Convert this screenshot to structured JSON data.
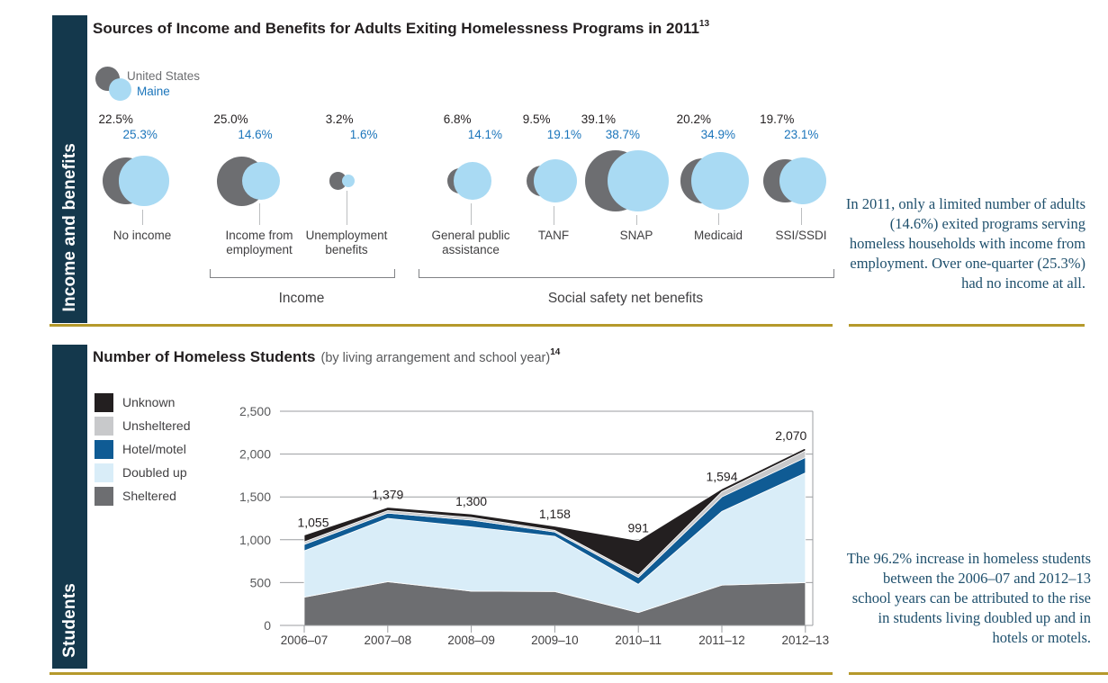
{
  "colors": {
    "sidebar_navy": "#14384C",
    "gold_rule": "#B5992B",
    "us_gray": "#6D6E71",
    "maine_blue": "#A9DAF3",
    "maine_text_blue": "#1B75BB",
    "heading_dark": "#231F20",
    "label_gray": "#414042",
    "axis_gray": "#58595B",
    "note_serif_blue": "#1E4F6C"
  },
  "section1": {
    "sidebar_label": "Income and benefits",
    "note": "In 2011, only a limited number of adults (14.6%) exited programs serving homeless households with income from employment. Over one-quarter (25.3%) had no income at all."
  },
  "section2": {
    "sidebar_label": "Students",
    "note": "The 96.2% increase in homeless students between the 2006–07 and 2012–13 school years can be attributed to the rise in students living doubled up and in hotels or motels."
  },
  "chart_data": [
    {
      "type": "bubble",
      "title": "Sources of Income and Benefits for Adults Exiting Homelessness Programs in 2011",
      "footnote_ref": "13",
      "value_format": "percent",
      "categories": [
        "No income",
        "Income from employment",
        "Unemployment benefits",
        "General public assistance",
        "TANF",
        "SNAP",
        "Medicaid",
        "SSI/SSDI"
      ],
      "series": [
        {
          "name": "United States",
          "color": "#6D6E71",
          "values": [
            22.5,
            25.0,
            3.2,
            6.8,
            9.5,
            39.1,
            20.2,
            19.7
          ]
        },
        {
          "name": "Maine",
          "color": "#A9DAF3",
          "values": [
            25.3,
            14.6,
            1.6,
            14.1,
            19.1,
            38.7,
            34.9,
            23.1
          ]
        }
      ],
      "groups": [
        {
          "label": "Income",
          "categories": [
            "Income from employment",
            "Unemployment benefits"
          ]
        },
        {
          "label": "Social safety net benefits",
          "categories": [
            "General public assistance",
            "TANF",
            "SNAP",
            "Medicaid",
            "SSI/SSDI"
          ]
        }
      ]
    },
    {
      "type": "area",
      "title": "Number of Homeless Students",
      "subtitle": "(by living arrangement and school year)",
      "footnote_ref": "14",
      "x": [
        "2006–07",
        "2007–08",
        "2008–09",
        "2009–10",
        "2010–11",
        "2011–12",
        "2012–13"
      ],
      "series": [
        {
          "name": "Sheltered",
          "color": "#6D6E71",
          "values": [
            330,
            510,
            400,
            395,
            150,
            470,
            500
          ]
        },
        {
          "name": "Doubled up",
          "color": "#D9EDF8",
          "values": [
            540,
            740,
            750,
            645,
            330,
            860,
            1280
          ]
        },
        {
          "name": "Hotel/motel",
          "color": "#0F5B94",
          "values": [
            75,
            60,
            80,
            50,
            80,
            170,
            180
          ]
        },
        {
          "name": "Unsheltered",
          "color": "#C8C9CB",
          "values": [
            30,
            30,
            30,
            20,
            30,
            60,
            80
          ]
        },
        {
          "name": "Unknown",
          "color": "#231F20",
          "values": [
            80,
            39,
            40,
            48,
            401,
            34,
            30
          ]
        }
      ],
      "totals": [
        1055,
        1379,
        1300,
        1158,
        991,
        1594,
        2070
      ],
      "ylim": [
        0,
        2500
      ],
      "yticks": [
        0,
        500,
        1000,
        1500,
        2000,
        2500
      ],
      "grid": true,
      "legend_position": "left"
    }
  ]
}
